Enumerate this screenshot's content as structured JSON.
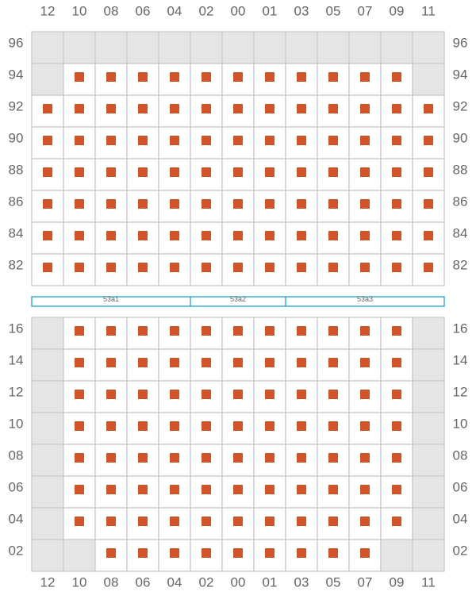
{
  "colors": {
    "seat": "#d2532a",
    "blocked": "#e5e5e7",
    "grid_line": "#d0d0d0",
    "section_outline": "#3fb0d0",
    "label_text": "#666666"
  },
  "columns": [
    "12",
    "10",
    "08",
    "06",
    "04",
    "02",
    "00",
    "01",
    "03",
    "05",
    "07",
    "09",
    "11"
  ],
  "sections": [
    {
      "label": "53a1",
      "col_start": 0,
      "col_end": 5
    },
    {
      "label": "53a2",
      "col_start": 5,
      "col_end": 8
    },
    {
      "label": "53a3",
      "col_start": 8,
      "col_end": 13
    }
  ],
  "upper_block": {
    "rows": [
      {
        "label": "96",
        "seats": "0000000000000",
        "blocked": "1111111111111"
      },
      {
        "label": "94",
        "seats": "0111111111110",
        "blocked": "1000000000001"
      },
      {
        "label": "92",
        "seats": "1111111111111",
        "blocked": "0000000000000"
      },
      {
        "label": "90",
        "seats": "1111111111111",
        "blocked": "0000000000000"
      },
      {
        "label": "88",
        "seats": "1111111111111",
        "blocked": "0000000000000"
      },
      {
        "label": "86",
        "seats": "1111111111111",
        "blocked": "0000000000000"
      },
      {
        "label": "84",
        "seats": "1111111111111",
        "blocked": "0000000000000"
      },
      {
        "label": "82",
        "seats": "1111111111111",
        "blocked": "0000000000000"
      }
    ]
  },
  "lower_block": {
    "rows": [
      {
        "label": "16",
        "seats": "0111111111110",
        "blocked": "1000000000001"
      },
      {
        "label": "14",
        "seats": "0111111111110",
        "blocked": "1000000000001"
      },
      {
        "label": "12",
        "seats": "0111111111110",
        "blocked": "1000000000001"
      },
      {
        "label": "10",
        "seats": "0111111111110",
        "blocked": "1000000000001"
      },
      {
        "label": "08",
        "seats": "0111111111110",
        "blocked": "1000000000001"
      },
      {
        "label": "06",
        "seats": "0111111111110",
        "blocked": "1000000000001"
      },
      {
        "label": "04",
        "seats": "0111111111110",
        "blocked": "1000000000001"
      },
      {
        "label": "02",
        "seats": "0011111111100",
        "blocked": "1100000000011"
      }
    ]
  }
}
